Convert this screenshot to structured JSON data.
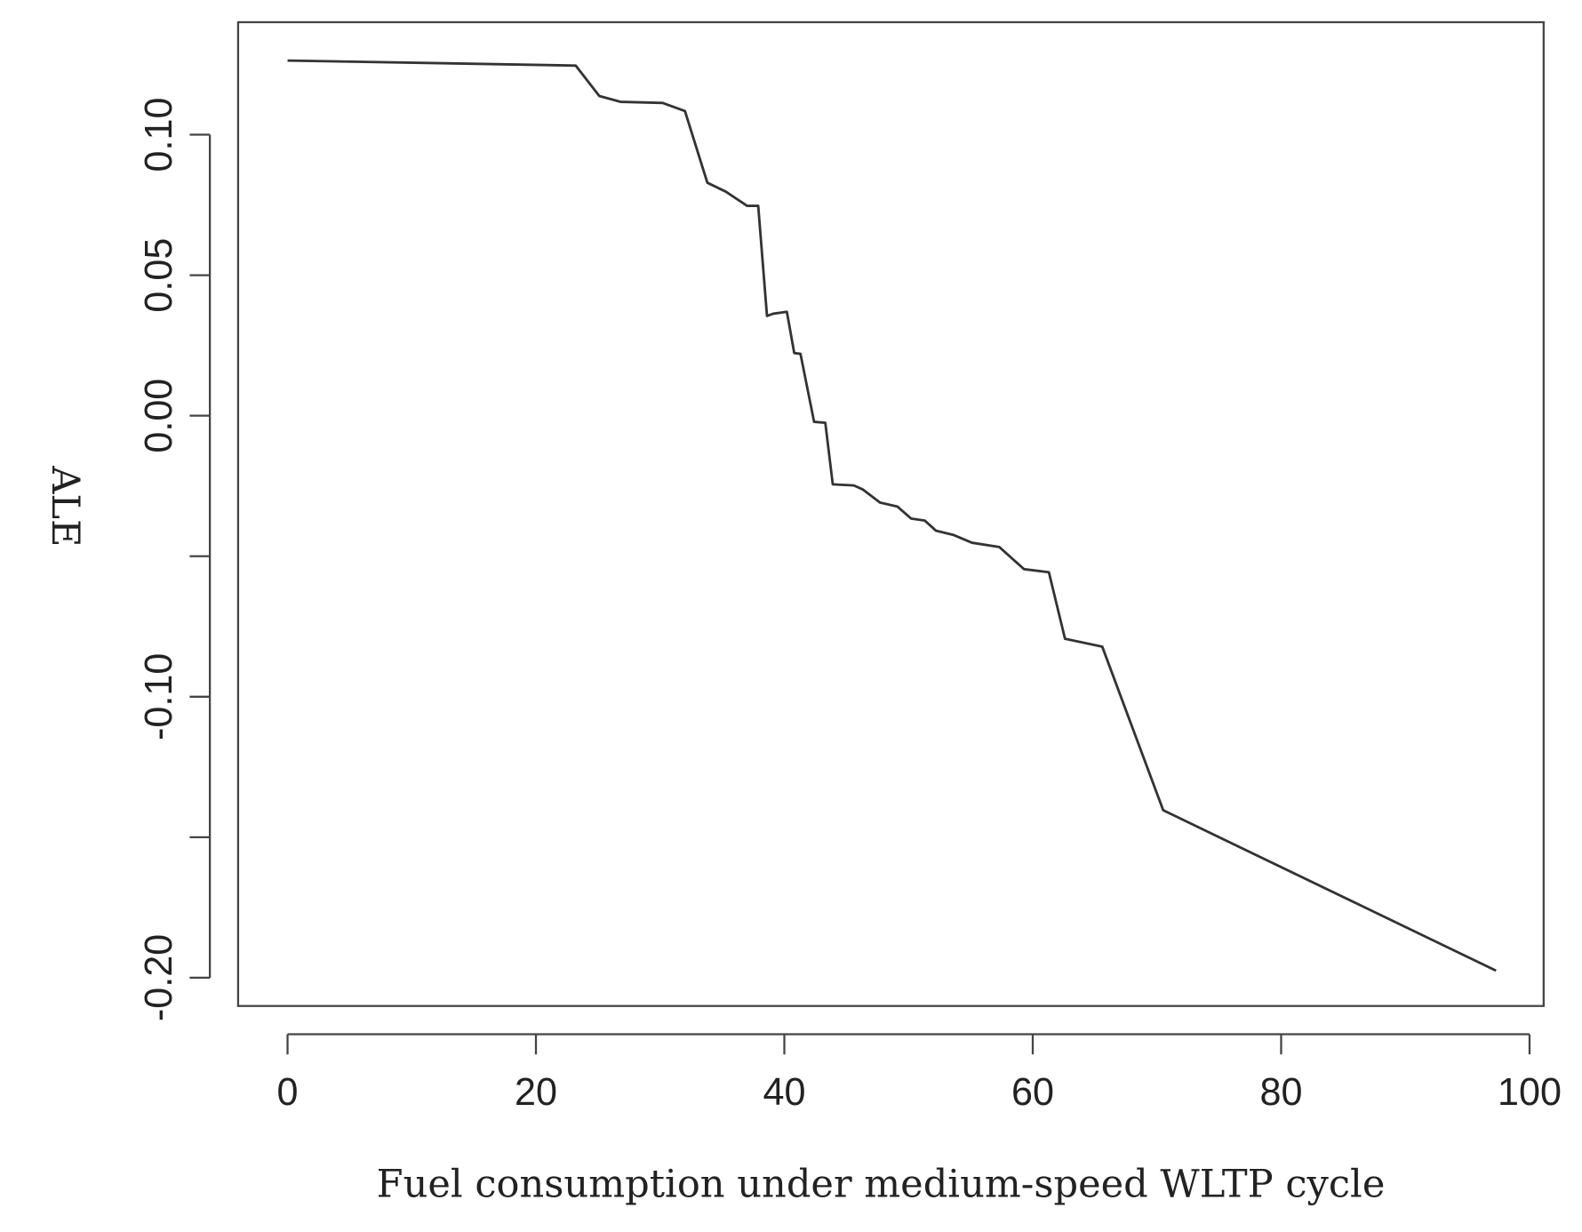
{
  "chart_data": {
    "type": "line",
    "title": "",
    "xlabel": "Fuel consumption under medium-speed WLTP cycle",
    "ylabel": "ALE",
    "xlim": [
      0,
      100
    ],
    "ylim": [
      -0.2,
      0.13
    ],
    "x_ticks": [
      0,
      20,
      40,
      60,
      80,
      100
    ],
    "x_tick_labels": [
      "0",
      "20",
      "40",
      "60",
      "80",
      "100"
    ],
    "y_ticks": [
      -0.2,
      -0.15,
      -0.1,
      -0.05,
      0.0,
      0.05,
      0.1
    ],
    "y_tick_labels": [
      "-0.20",
      "",
      "-0.10",
      "",
      "0.00",
      "0.05",
      "0.10"
    ],
    "grid": false,
    "legend": "none",
    "line_color": "#333333",
    "series": [
      {
        "x": [
          0,
          23.2,
          25.1,
          26.8,
          30.2,
          32.0,
          33.8,
          35.3,
          37.0,
          37.9,
          38.6,
          39.1,
          40.2,
          40.8,
          41.3,
          42.4,
          43.3,
          43.9,
          45.6,
          46.3,
          47.7,
          49.1,
          50.2,
          51.3,
          52.2,
          53.6,
          55.1,
          57.3,
          59.3,
          61.3,
          62.6,
          65.6,
          70.5,
          97.3
        ],
        "y": [
          0.1264,
          0.1246,
          0.1138,
          0.1117,
          0.1113,
          0.1084,
          0.0829,
          0.0797,
          0.0747,
          0.0747,
          0.0355,
          0.0363,
          0.037,
          0.0223,
          0.022,
          -0.0022,
          -0.0025,
          -0.0244,
          -0.0248,
          -0.0262,
          -0.0309,
          -0.0323,
          -0.0366,
          -0.0373,
          -0.0409,
          -0.0424,
          -0.0452,
          -0.0467,
          -0.0546,
          -0.0557,
          -0.0794,
          -0.0822,
          -0.1404,
          -0.1975
        ]
      }
    ]
  }
}
